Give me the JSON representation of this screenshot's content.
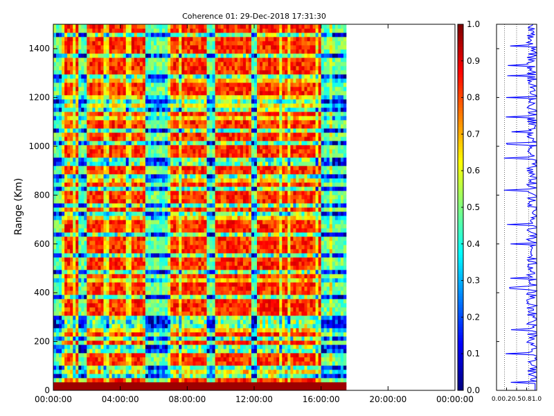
{
  "chart_data": [
    {
      "type": "heatmap",
      "title": "Coherence 01: 29-Dec-2018 17:31:30",
      "ylabel": "Range (Km)",
      "xlabel": "",
      "x_tick_labels": [
        "00:00:00",
        "04:00:00",
        "08:00:00",
        "12:00:00",
        "16:00:00",
        "20:00:00",
        "00:00:00"
      ],
      "x_range_hours": [
        0,
        24
      ],
      "data_end_hours": 17.5,
      "y_ticks": [
        0,
        200,
        400,
        600,
        800,
        1000,
        1200,
        1400
      ],
      "ylim": [
        0,
        1500
      ],
      "colormap": "jet",
      "color_range": [
        0.0,
        1.0
      ],
      "colorbar_ticks": [
        "0.0",
        "0.1",
        "0.2",
        "0.3",
        "0.4",
        "0.5",
        "0.6",
        "0.7",
        "0.8",
        "0.9",
        "1.0"
      ],
      "typical_value": 0.92,
      "low_value_hours": [
        0.1,
        0.3,
        1.7,
        5.8,
        6.1,
        6.3,
        6.6,
        9.4,
        12.0,
        16.2,
        16.9,
        17.3
      ],
      "low_value_ranges_km": [
        60,
        100,
        170,
        210,
        260,
        290,
        380,
        490,
        560,
        640,
        730,
        760,
        830,
        870,
        930,
        950,
        1020,
        1060,
        1150,
        1180,
        1280,
        1380,
        1460
      ],
      "grid": false,
      "colors": {
        "data_line": "#0000ff",
        "axes": "#000000"
      }
    },
    {
      "type": "line",
      "title": "",
      "description_axis": "x",
      "x_tick_labels": [
        "0.0",
        "0.2",
        "0.5",
        "0.8",
        "1.0"
      ],
      "xlim": [
        0,
        1
      ],
      "ylim": [
        0,
        1500
      ],
      "vertical_dotted_lines_at": [
        0.2,
        0.5,
        0.8
      ],
      "typical_value": 0.85,
      "dip_ranges_km": [
        30,
        150,
        250,
        420,
        460,
        600,
        680,
        820,
        950,
        1010,
        1060,
        1120,
        1200,
        1290,
        1330,
        1410
      ]
    }
  ]
}
